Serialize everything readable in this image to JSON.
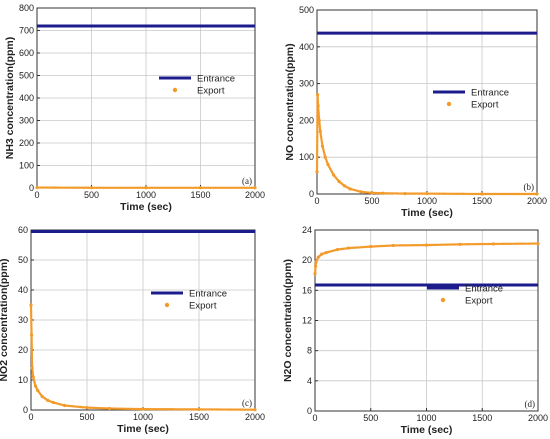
{
  "colors": {
    "entrance": "#1c1c8c",
    "export": "#f39b2a",
    "grid": "#c8c8c8",
    "axis": "#333333"
  },
  "chart_data": [
    {
      "type": "line",
      "panel_label": "(a)",
      "xlabel": "Time (sec)",
      "ylabel": "NH3 concentration(ppm)",
      "xlim": [
        0,
        2000
      ],
      "ylim": [
        0,
        800
      ],
      "x_ticks": [
        0,
        500,
        1000,
        1500,
        2000
      ],
      "y_ticks": [
        0,
        100,
        200,
        300,
        400,
        500,
        600,
        700,
        800
      ],
      "grid": true,
      "legend_position": "right",
      "series": [
        {
          "name": "Entrance",
          "style": "line",
          "x": [
            0,
            2000
          ],
          "values": [
            720,
            720
          ]
        },
        {
          "name": "Export",
          "style": "markers",
          "x": [
            0,
            500,
            1000,
            1500,
            2000
          ],
          "values": [
            2,
            1,
            1,
            1,
            1
          ]
        }
      ]
    },
    {
      "type": "line",
      "panel_label": "(b)",
      "xlabel": "Time (sec)",
      "ylabel": "NO concentration(ppm)",
      "xlim": [
        0,
        2000
      ],
      "ylim": [
        0,
        500
      ],
      "x_ticks": [
        0,
        500,
        1000,
        1500,
        2000
      ],
      "y_ticks": [
        0,
        100,
        200,
        300,
        400,
        500
      ],
      "grid": true,
      "legend_position": "right",
      "series": [
        {
          "name": "Entrance",
          "style": "line",
          "x": [
            0,
            2000
          ],
          "values": [
            437,
            437
          ]
        },
        {
          "name": "Export",
          "style": "markers",
          "x": [
            0,
            5,
            10,
            20,
            30,
            50,
            75,
            100,
            150,
            200,
            250,
            300,
            400,
            500,
            600,
            800,
            1000,
            1500,
            2000
          ],
          "values": [
            60,
            270,
            240,
            200,
            170,
            130,
            100,
            80,
            52,
            34,
            22,
            14,
            6,
            3,
            2,
            1,
            1,
            0,
            0
          ]
        }
      ]
    },
    {
      "type": "line",
      "panel_label": "(c)",
      "xlabel": "Time (sec)",
      "ylabel": "NO2 concentration(ppm)",
      "xlim": [
        0,
        2000
      ],
      "ylim": [
        0,
        60
      ],
      "x_ticks": [
        0,
        500,
        1000,
        1500,
        2000
      ],
      "y_ticks": [
        0,
        10,
        20,
        30,
        40,
        50,
        60
      ],
      "grid": true,
      "legend_position": "right",
      "series": [
        {
          "name": "Entrance",
          "style": "line",
          "x": [
            0,
            2000
          ],
          "values": [
            59.5,
            59.5
          ]
        },
        {
          "name": "Export",
          "style": "markers",
          "x": [
            0,
            5,
            10,
            20,
            40,
            60,
            100,
            150,
            200,
            300,
            500,
            700,
            1000,
            1500,
            2000
          ],
          "values": [
            35,
            25,
            14,
            11,
            8,
            6.5,
            4.5,
            3.2,
            2.5,
            1.5,
            0.8,
            0.5,
            0.3,
            0.2,
            0.1
          ]
        }
      ]
    },
    {
      "type": "line",
      "panel_label": "(d)",
      "xlabel": "Time (sec)",
      "ylabel": "N2O concentration(ppm)",
      "xlim": [
        0,
        2000
      ],
      "ylim": [
        0,
        24
      ],
      "x_ticks": [
        0,
        500,
        1000,
        1500,
        2000
      ],
      "y_ticks": [
        0,
        4,
        8,
        12,
        16,
        20,
        24
      ],
      "grid": true,
      "legend_position": "right",
      "series": [
        {
          "name": "Entrance",
          "style": "line",
          "x": [
            0,
            2000
          ],
          "values": [
            16.7,
            16.7
          ]
        },
        {
          "name": "Export",
          "style": "markers",
          "x": [
            0,
            5,
            10,
            30,
            60,
            100,
            200,
            300,
            500,
            700,
            1000,
            1300,
            1600,
            2000
          ],
          "values": [
            18.2,
            19.2,
            19.8,
            20.4,
            20.8,
            21.0,
            21.4,
            21.6,
            21.8,
            21.95,
            22.0,
            22.1,
            22.15,
            22.2
          ]
        }
      ]
    }
  ]
}
